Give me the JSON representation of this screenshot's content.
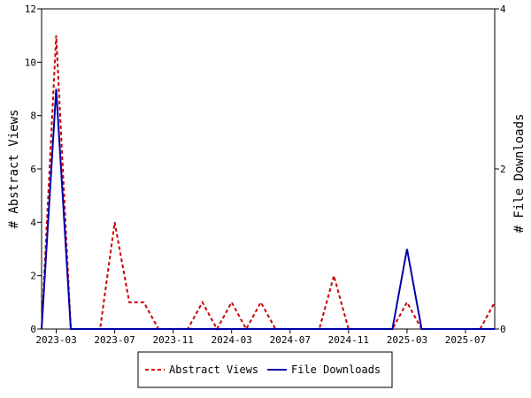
{
  "chart_data": {
    "type": "line",
    "title": "",
    "x_tick_labels": [
      "2023-03",
      "2023-07",
      "2023-11",
      "2024-03",
      "2024-07",
      "2024-11",
      "2025-03",
      "2025-07"
    ],
    "x_months": [
      "2023-02",
      "2023-03",
      "2023-04",
      "2023-05",
      "2023-06",
      "2023-07",
      "2023-08",
      "2023-09",
      "2023-10",
      "2023-11",
      "2023-12",
      "2024-01",
      "2024-02",
      "2024-03",
      "2024-04",
      "2024-05",
      "2024-06",
      "2024-07",
      "2024-08",
      "2024-09",
      "2024-10",
      "2024-11",
      "2024-12",
      "2025-01",
      "2025-02",
      "2025-03",
      "2025-04",
      "2025-05",
      "2025-06",
      "2025-07",
      "2025-08",
      "2025-09"
    ],
    "y_left": {
      "label": "# Abstract Views",
      "ticks": [
        0,
        2,
        4,
        6,
        8,
        10,
        12
      ],
      "ylim": [
        0,
        12
      ]
    },
    "y_right": {
      "label": "# File Downloads",
      "ticks": [
        0,
        2,
        4
      ],
      "ylim": [
        0,
        4
      ]
    },
    "series": [
      {
        "name": "Abstract Views",
        "axis": "left",
        "color": "#cc0000",
        "dash": true,
        "values": [
          0,
          11,
          0,
          0,
          0,
          4,
          1,
          1,
          0,
          0,
          0,
          1,
          0,
          1,
          0,
          1,
          0,
          0,
          0,
          0,
          2,
          0,
          0,
          0,
          0,
          1,
          0,
          0,
          0,
          0,
          0,
          1
        ]
      },
      {
        "name": "File Downloads",
        "axis": "right",
        "color": "#0000aa",
        "dash": false,
        "values": [
          0,
          3,
          0,
          0,
          0,
          0,
          0,
          0,
          0,
          0,
          0,
          0,
          0,
          0,
          0,
          0,
          0,
          0,
          0,
          0,
          0,
          0,
          0,
          0,
          0,
          1,
          0,
          0,
          0,
          0,
          0,
          0
        ]
      }
    ],
    "legend_position": "bottom-center",
    "grid": false
  }
}
